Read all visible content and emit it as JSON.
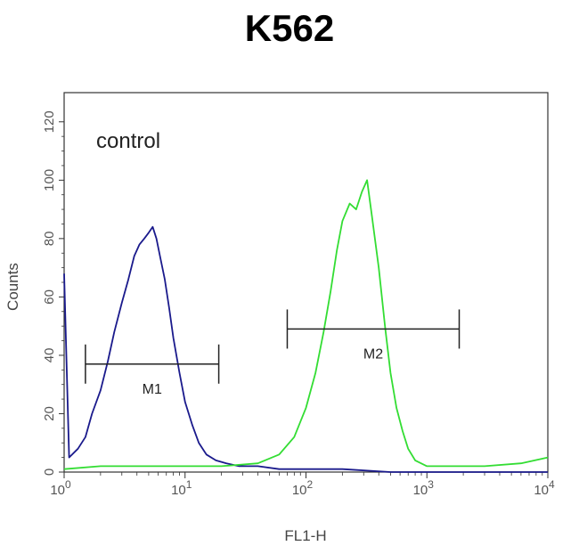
{
  "title": "K562",
  "chart_data": {
    "type": "line",
    "title": "K562",
    "xlabel": "FL1-H",
    "ylabel": "Counts",
    "xscale": "log",
    "xlim": [
      1,
      10000
    ],
    "ylim": [
      0,
      130
    ],
    "x_ticks": [
      {
        "base": "10",
        "exp": "0",
        "value": 1
      },
      {
        "base": "10",
        "exp": "1",
        "value": 10
      },
      {
        "base": "10",
        "exp": "2",
        "value": 100
      },
      {
        "base": "10",
        "exp": "3",
        "value": 1000
      },
      {
        "base": "10",
        "exp": "4",
        "value": 10000
      }
    ],
    "y_ticks": [
      "0",
      "20",
      "40",
      "60",
      "80",
      "100",
      "120"
    ],
    "y_tick_values": [
      0,
      20,
      40,
      60,
      80,
      100,
      120
    ],
    "annotation": "control",
    "series": [
      {
        "color": "#1a1a8c",
        "x": [
          1.0,
          1.1,
          1.3,
          1.5,
          1.7,
          2.0,
          2.3,
          2.6,
          3.0,
          3.4,
          3.8,
          4.2,
          4.6,
          5.0,
          5.4,
          5.8,
          6.2,
          6.8,
          7.4,
          8.0,
          9.0,
          10.0,
          11.5,
          13.0,
          15.0,
          18.0,
          22.0,
          28.0,
          40.0,
          60.0,
          100.0,
          200.0,
          500.0,
          1000.0,
          3000.0,
          10000.0
        ],
        "values": [
          68,
          5,
          8,
          12,
          20,
          28,
          38,
          48,
          58,
          66,
          74,
          78,
          80,
          82,
          84,
          80,
          74,
          66,
          56,
          46,
          34,
          24,
          16,
          10,
          6,
          4,
          3,
          2,
          2,
          1,
          1,
          1,
          0,
          0,
          0,
          0
        ]
      },
      {
        "color": "#33dd33",
        "x": [
          1.0,
          2.0,
          5.0,
          10.0,
          20.0,
          40.0,
          60.0,
          80.0,
          100.0,
          120.0,
          140.0,
          160.0,
          180.0,
          200.0,
          230.0,
          260.0,
          290.0,
          320.0,
          350.0,
          400.0,
          450.0,
          500.0,
          560.0,
          630.0,
          700.0,
          800.0,
          1000.0,
          1500.0,
          3000.0,
          6000.0,
          10000.0
        ],
        "values": [
          1,
          2,
          2,
          2,
          2,
          3,
          6,
          12,
          22,
          34,
          48,
          62,
          76,
          86,
          92,
          90,
          96,
          100,
          88,
          70,
          50,
          34,
          22,
          14,
          8,
          4,
          2,
          2,
          2,
          3,
          5
        ]
      }
    ],
    "markers": [
      {
        "label": "M1",
        "x_start": 1.5,
        "x_end": 19,
        "y": 37
      },
      {
        "label": "M2",
        "x_start": 70,
        "x_end": 1850,
        "y": 49
      }
    ]
  }
}
